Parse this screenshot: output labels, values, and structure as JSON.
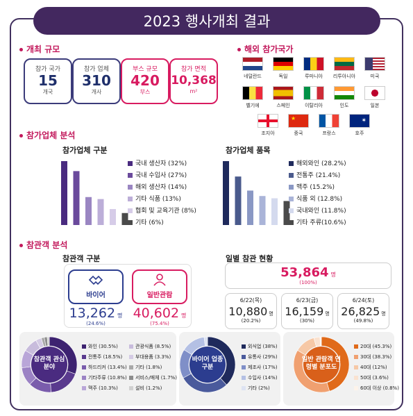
{
  "title": "2023 행사개최 결과",
  "scale_section": {
    "label": "개최 규모",
    "stats": [
      {
        "label": "참가 국가",
        "value": "15",
        "unit": "개국",
        "accent": false
      },
      {
        "label": "참가 업체",
        "value": "310",
        "unit": "개사",
        "accent": false
      },
      {
        "label": "부스 규모",
        "value": "420",
        "unit": "부스",
        "accent": true
      },
      {
        "label": "참가 면적",
        "value": "10,368",
        "unit": "m²",
        "accent": true
      }
    ]
  },
  "countries_section": {
    "label": "해외 참가국가",
    "countries": [
      "네덜란드",
      "독일",
      "루마니아",
      "리투아니아",
      "미국",
      "벨기에",
      "스페인",
      "이탈리아",
      "인도",
      "일본",
      "조지아",
      "중국",
      "프랑스",
      "호주"
    ]
  },
  "companies_section": {
    "label": "참가업체 분석"
  },
  "visitors_section": {
    "label": "참관객 분석"
  },
  "chart_data": [
    {
      "type": "bar",
      "title": "참가업체 구분",
      "categories": [
        "국내 생산자",
        "국내 수입사",
        "해외 생산자",
        "기타 식품",
        "협회 및 교육기관",
        "기타"
      ],
      "values": [
        32,
        27,
        14,
        13,
        8,
        6
      ],
      "legend_labels": [
        "국내 생산자 (32%)",
        "국내 수입사 (27%)",
        "해외 생산자 (14%)",
        "기타 식품 (13%)",
        "협회 및 교육기관 (8%)",
        "기타 (6%)"
      ],
      "colors": [
        "#4a2b80",
        "#6a4a9c",
        "#9a86c2",
        "#bcaed8",
        "#d6cce8",
        "#4a4a4a"
      ]
    },
    {
      "type": "bar",
      "title": "참가업체 품목",
      "categories": [
        "해외와인",
        "전통주",
        "맥주",
        "식품 외",
        "국내와인",
        "기타 주류"
      ],
      "values": [
        28.2,
        21.4,
        15.2,
        12.8,
        11.8,
        10.6
      ],
      "legend_labels": [
        "해외와인 (28.2%)",
        "전통주 (21.4%)",
        "맥주 (15.2%)",
        "식품 외 (12.8%)",
        "국내와인 (11.8%)",
        "기타 주류(10.6%)"
      ],
      "colors": [
        "#1f2a5c",
        "#4a5a8c",
        "#8a98c4",
        "#aab4d8",
        "#d4daee",
        "#4a4a4a"
      ]
    },
    {
      "type": "table",
      "title": "참관객 구분",
      "rows": [
        {
          "label": "바이어",
          "value": "13,262",
          "unit": "명",
          "pct": "(24.6%)"
        },
        {
          "label": "일반관람",
          "value": "40,602",
          "unit": "명",
          "pct": "(75.4%)"
        }
      ]
    },
    {
      "type": "table",
      "title": "일별 참관 현황",
      "total": {
        "value": "53,864",
        "unit": "명",
        "pct": "(100%)"
      },
      "days": [
        {
          "date": "6/22(목)",
          "value": "10,880",
          "unit": "명",
          "pct": "(20.2%)"
        },
        {
          "date": "6/23(금)",
          "value": "16,159",
          "unit": "명",
          "pct": "(30%)"
        },
        {
          "date": "6/24(토)",
          "value": "26,825",
          "unit": "명",
          "pct": "(49.8%)"
        }
      ]
    },
    {
      "type": "pie",
      "title": "참관객 관심 분야",
      "categories": [
        "와인",
        "전통주",
        "하드리커",
        "기타주류",
        "맥주",
        "관광식품",
        "부대용품",
        "기타",
        "서비스/매체",
        "설비"
      ],
      "values": [
        30.5,
        18.5,
        13.4,
        10.8,
        10.3,
        8.5,
        3.3,
        1.8,
        1.7,
        1.2
      ],
      "legend_labels": [
        "와인 (30.5%)",
        "전통주 (18.5%)",
        "하드리커 (13.4%)",
        "기타주류 (10.8%)",
        "맥주 (10.3%)",
        "관광식품 (8.5%)",
        "부대용품 (3.3%)",
        "기타 (1.8%)",
        "서비스/매체 (1.7%)",
        "설비 (1.2%)"
      ],
      "colors": [
        "#3d2270",
        "#5a3a8e",
        "#7a5cac",
        "#9b82c4",
        "#b9a6d8",
        "#c8bcdc",
        "#d4cbe4",
        "#a8a8a8",
        "#8c8c8c",
        "#d0d0d0"
      ]
    },
    {
      "type": "pie",
      "title": "바이어 업종 구분",
      "categories": [
        "외식업",
        "유통사",
        "제조사",
        "수입사",
        "기타"
      ],
      "values": [
        38,
        29,
        17,
        14,
        2
      ],
      "legend_labels": [
        "외식업 (38%)",
        "유통사 (29%)",
        "제조사 (17%)",
        "수입사 (14%)",
        "기타 (2%)"
      ],
      "colors": [
        "#1f2a5c",
        "#4a5a9c",
        "#7f8fc8",
        "#b4c0e4",
        "#dde3f2"
      ]
    },
    {
      "type": "pie",
      "title": "일반 관람객 연령별 분포도",
      "categories": [
        "20대",
        "30대",
        "40대",
        "50대",
        "60대 이상"
      ],
      "values": [
        45.3,
        38.3,
        12,
        3.6,
        0.8
      ],
      "legend_labels": [
        "20대 (45.3%)",
        "30대 (38.3%)",
        "40대 (12%)",
        "50대 (3.6%)",
        "60대 이상 (0.8%)"
      ],
      "colors": [
        "#e06a1a",
        "#f0a070",
        "#f6c8a6",
        "#fae2d0",
        "#fdf3ea"
      ]
    }
  ]
}
